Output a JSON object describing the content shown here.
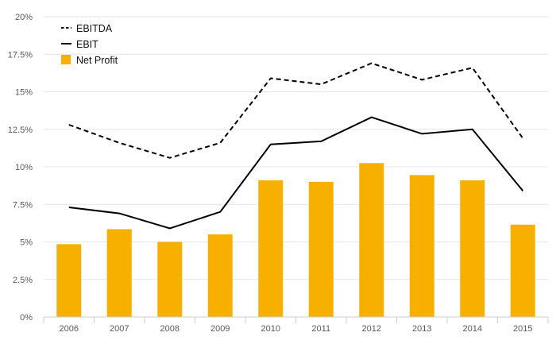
{
  "chart_data": {
    "type": "bar",
    "categories": [
      "2006",
      "2007",
      "2008",
      "2009",
      "2010",
      "2011",
      "2012",
      "2013",
      "2014",
      "2015"
    ],
    "series": [
      {
        "name": "EBITDA",
        "type": "line",
        "style": "dashed",
        "color": "#000000",
        "values": [
          12.8,
          11.6,
          10.6,
          11.6,
          15.9,
          15.5,
          16.9,
          15.8,
          16.6,
          11.9
        ]
      },
      {
        "name": "EBIT",
        "type": "line",
        "style": "solid",
        "color": "#000000",
        "values": [
          7.3,
          6.9,
          5.9,
          7.0,
          11.5,
          11.7,
          13.3,
          12.2,
          12.5,
          8.4
        ]
      },
      {
        "name": "Net Profit",
        "type": "bar",
        "color": "#F7B000",
        "values": [
          4.85,
          5.85,
          5.0,
          5.5,
          9.1,
          9.0,
          10.25,
          9.45,
          9.1,
          6.15
        ]
      }
    ],
    "ylim": [
      0,
      20
    ],
    "yticks": [
      "0%",
      "2.5%",
      "5%",
      "7.5%",
      "10%",
      "12.5%",
      "15%",
      "17.5%",
      "20%"
    ],
    "ytick_values": [
      0,
      2.5,
      5,
      7.5,
      10,
      12.5,
      15,
      17.5,
      20
    ],
    "grid": true,
    "legend_position": "top-left"
  }
}
